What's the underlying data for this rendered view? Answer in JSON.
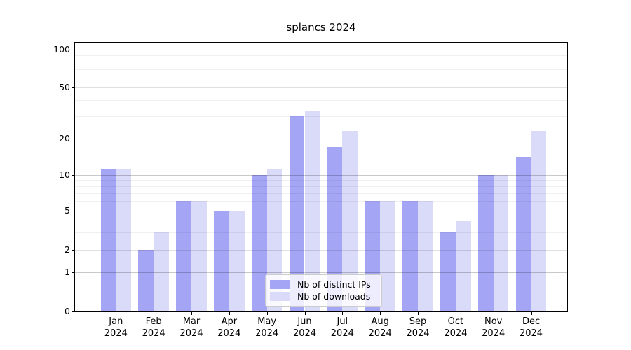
{
  "chart_data": {
    "type": "bar",
    "title": "splancs 2024",
    "categories": [
      "Jan",
      "Feb",
      "Mar",
      "Apr",
      "May",
      "Jun",
      "Jul",
      "Aug",
      "Sep",
      "Oct",
      "Nov",
      "Dec"
    ],
    "category_year": "2024",
    "series": [
      {
        "name": "Nb of distinct IPs",
        "color": "#a5a5f6",
        "values": [
          11,
          2,
          6,
          5,
          10,
          30,
          17,
          6,
          6,
          3,
          10,
          14
        ]
      },
      {
        "name": "Nb of downloads",
        "color": "#dadaf9",
        "values": [
          11,
          3,
          6,
          5,
          11,
          33,
          23,
          6,
          6,
          4,
          10,
          23
        ]
      }
    ],
    "y_axis": {
      "ticks": [
        0,
        1,
        2,
        5,
        10,
        20,
        50,
        100
      ],
      "minor_gridlines": [
        3,
        4,
        6,
        7,
        8,
        9,
        30,
        40,
        60,
        70,
        80,
        90
      ],
      "scale": "log-like",
      "range": [
        0,
        115
      ]
    },
    "x_axis": {
      "label_lines": 2
    },
    "legend": {
      "position": "lower center"
    },
    "grid": true,
    "colors": {
      "frame": "#000000",
      "background": "#ffffff"
    }
  }
}
